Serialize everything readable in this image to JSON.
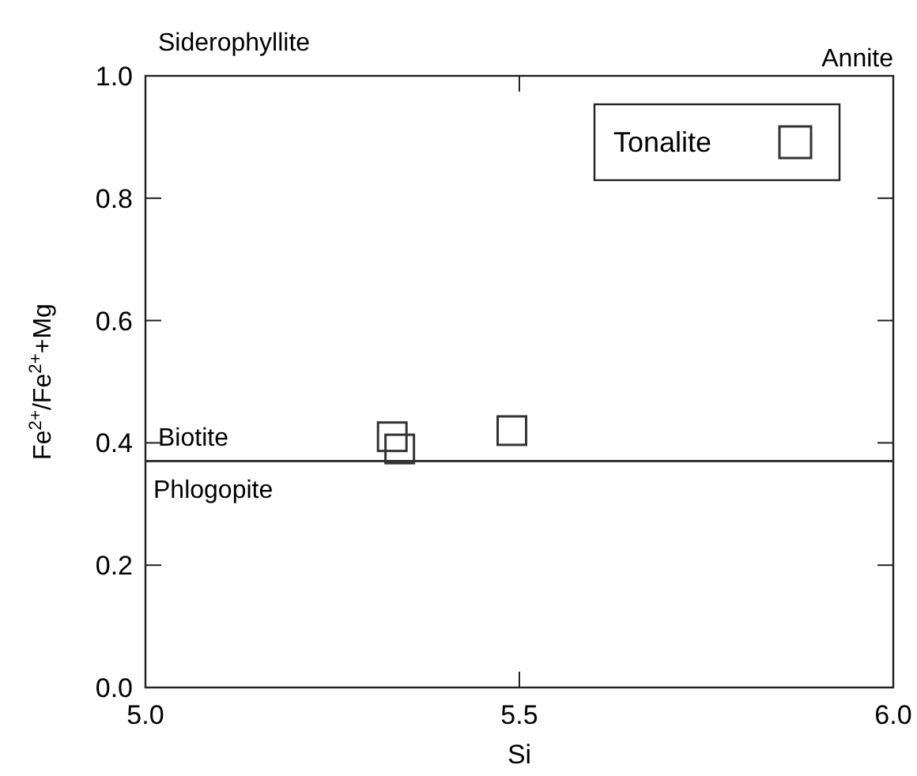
{
  "chart_data": {
    "type": "scatter",
    "xlabel": "Si",
    "ylabel": "Fe$^{2+}$/Fe$^{2+}$+Mg",
    "xlim": [
      5.0,
      6.0
    ],
    "xticks": [
      {
        "value": 5.0,
        "label": "5.0"
      },
      5.5,
      {
        "value": 6.0,
        "label": "6.0"
      }
    ],
    "ylim": [
      0.0,
      1.0
    ],
    "yticks": [
      {
        "value": 0.0,
        "label": "0.0"
      },
      0.2,
      0.4,
      0.6,
      0.8,
      {
        "value": 1.0,
        "label": "1.0"
      }
    ],
    "series": [
      {
        "name": "Tonalite",
        "color": "#333333",
        "x": [
          5.33,
          5.34,
          5.49
        ],
        "values": [
          0.41,
          0.39,
          0.42
        ]
      }
    ],
    "marker": "square",
    "legend": "top right",
    "grid": false,
    "ref_lines": [
      {
        "axis": "y",
        "value": 0.37,
        "color": "#333333"
      }
    ],
    "annotations": [
      "Siderophyllite",
      "Annite",
      "Biotite",
      "Phlogopite"
    ]
  }
}
